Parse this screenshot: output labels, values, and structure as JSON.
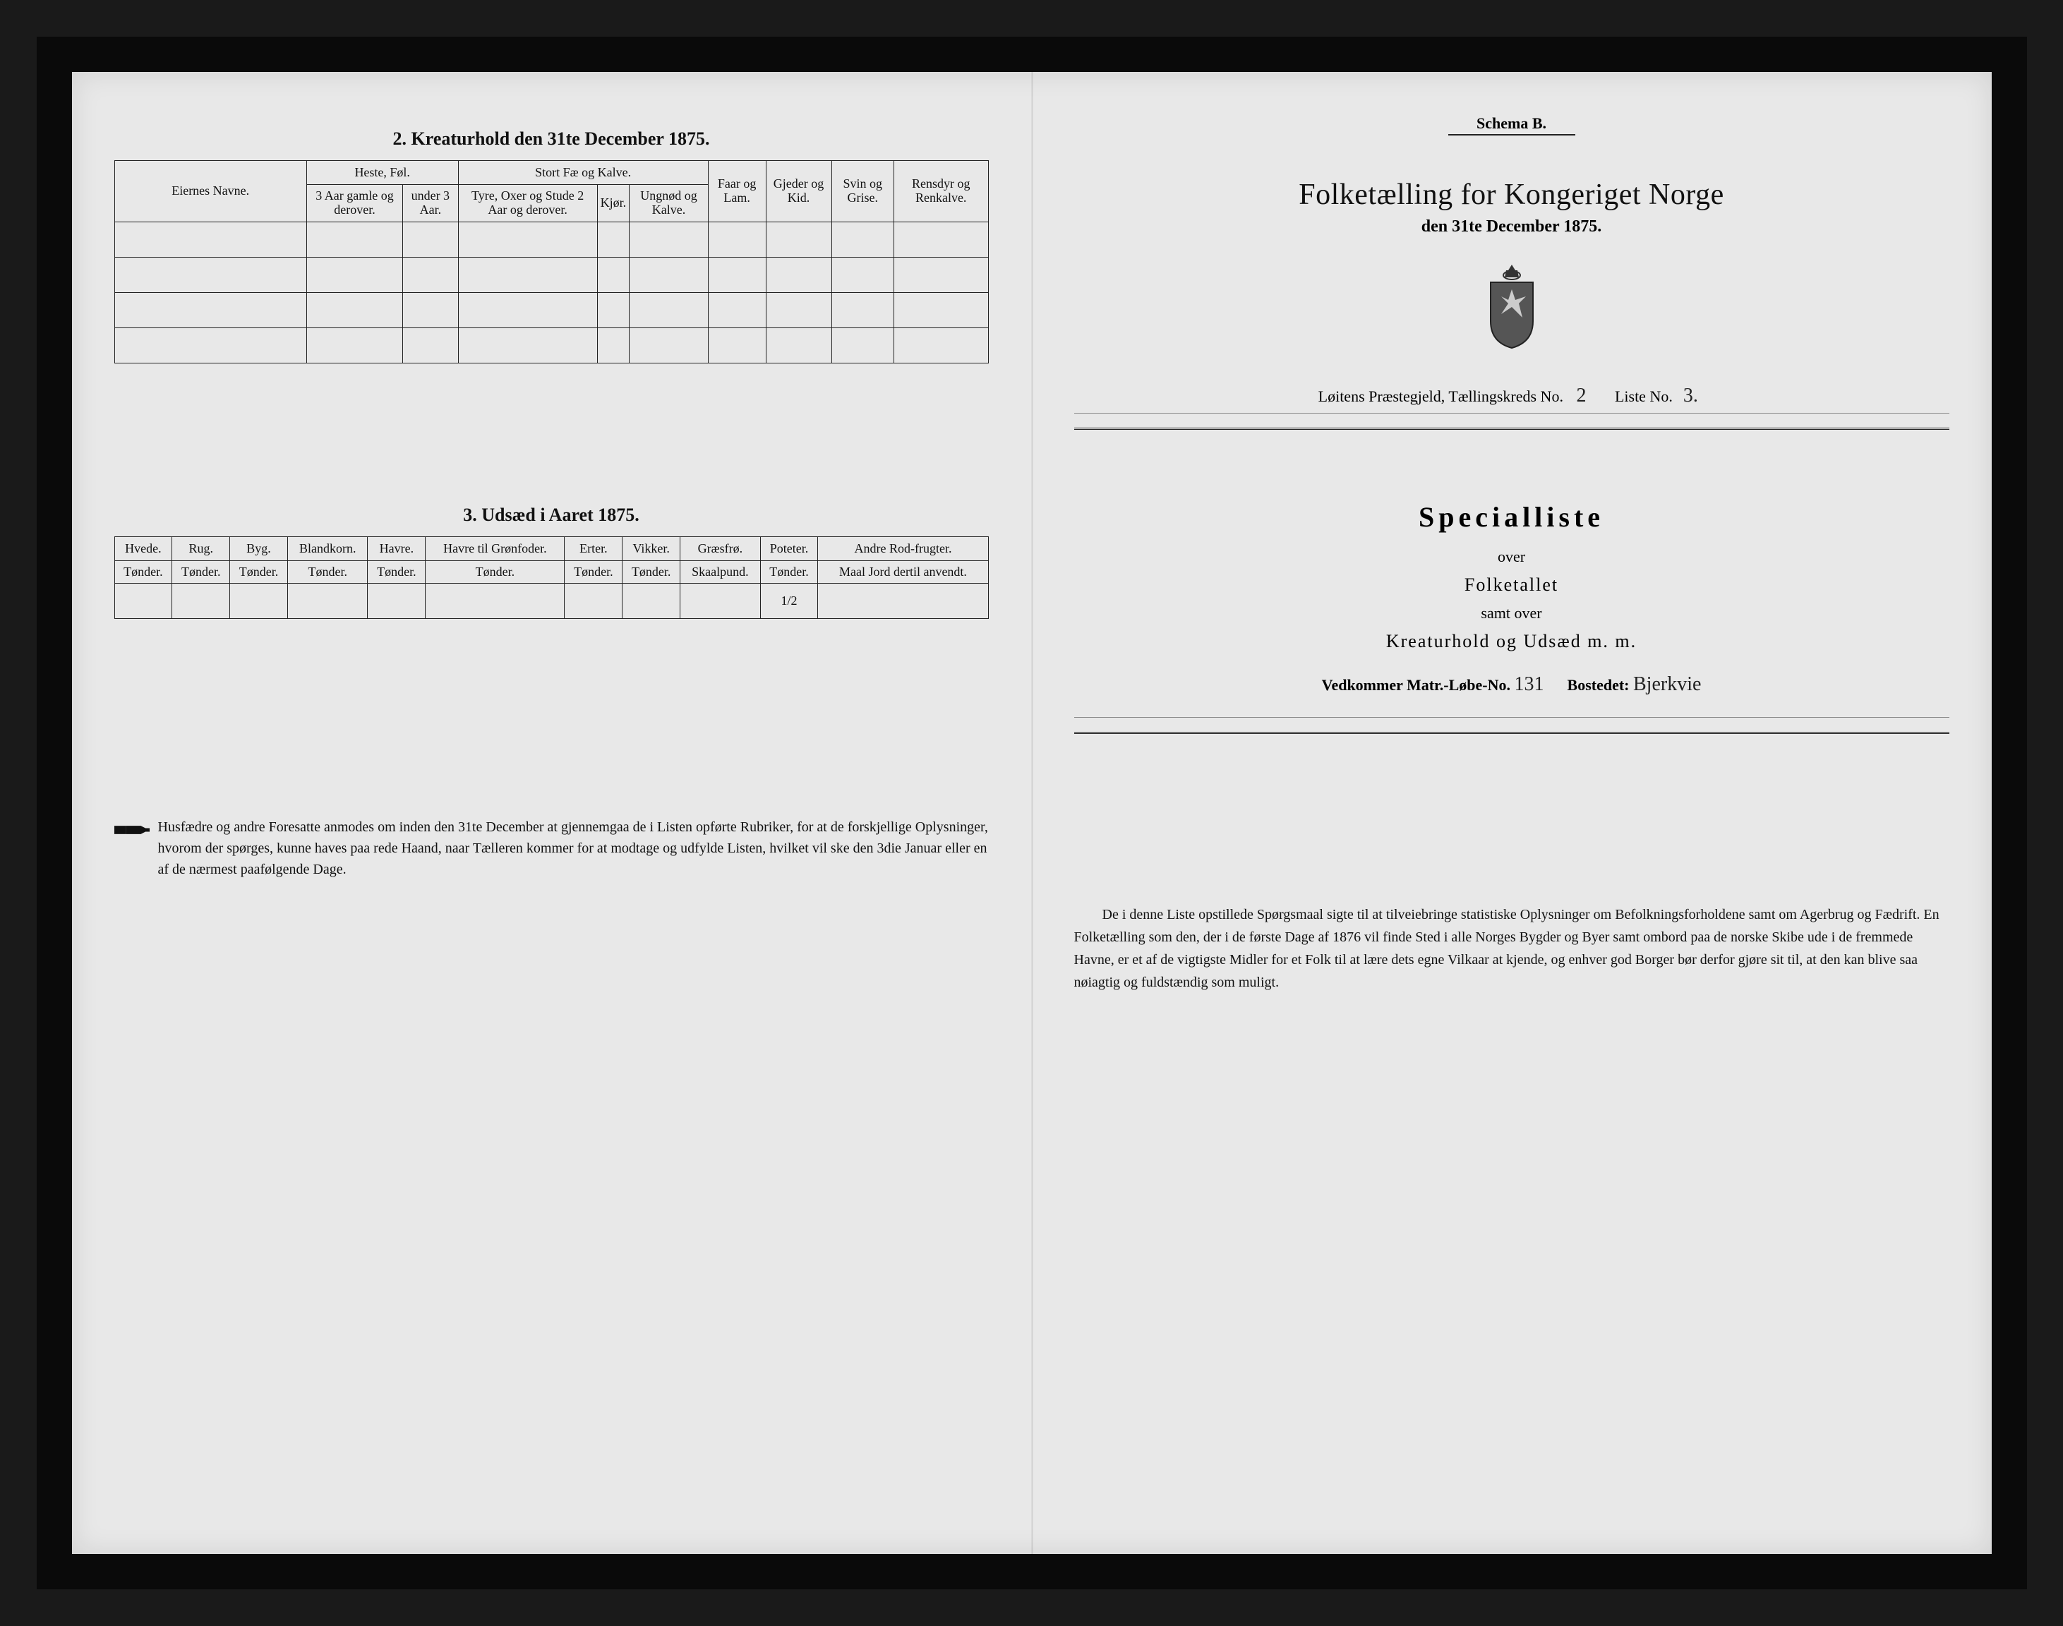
{
  "colors": {
    "page_bg": "#e8e8e8",
    "frame_bg": "#0a0a0a",
    "ink": "#111111",
    "rule": "#222222",
    "rule_light": "#888888"
  },
  "left": {
    "section2_title": "2.  Kreaturhold den 31te December 1875.",
    "table2": {
      "col_owner": "Eiernes Navne.",
      "group_horses": "Heste, Føl.",
      "group_cattle": "Stort Fæ og Kalve.",
      "col_horses_a": "3 Aar gamle og derover.",
      "col_horses_b": "under 3 Aar.",
      "col_cattle_a": "Tyre, Oxer og Stude 2 Aar og derover.",
      "col_cattle_b": "Kjør.",
      "col_cattle_c": "Ungnød og Kalve.",
      "col_sheep": "Faar og Lam.",
      "col_goats": "Gjeder og Kid.",
      "col_pigs": "Svin og Grise.",
      "col_reindeer": "Rensdyr og Renkalve."
    },
    "section3_title": "3.  Udsæd i Aaret 1875.",
    "table3": {
      "headers": [
        "Hvede.",
        "Rug.",
        "Byg.",
        "Blandkorn.",
        "Havre.",
        "Havre til Grønfoder.",
        "Erter.",
        "Vikker.",
        "Græsfrø.",
        "Poteter.",
        "Andre Rod-frugter."
      ],
      "units": [
        "Tønder.",
        "Tønder.",
        "Tønder.",
        "Tønder.",
        "Tønder.",
        "Tønder.",
        "Tønder.",
        "Tønder.",
        "Skaalpund.",
        "Tønder.",
        "Maal Jord dertil anvendt."
      ],
      "values": [
        "",
        "",
        "",
        "",
        "",
        "",
        "",
        "",
        "",
        "1/2",
        ""
      ]
    },
    "instructions": "Husfædre og andre Foresatte anmodes om inden den 31te December at gjennemgaa de i Listen opførte Rubriker, for at de forskjellige Oplysninger, hvorom der spørges, kunne haves paa rede Haand, naar Tælleren kommer for at modtage og udfylde Listen, hvilket vil ske den 3die Januar eller en af de nærmest paafølgende Dage."
  },
  "right": {
    "schema": "Schema B.",
    "main_title": "Folketælling for Kongeriget Norge",
    "main_sub": "den 31te December 1875.",
    "meta_prefix": "Løitens Præstegjeld, Tællingskreds No.",
    "meta_kreds": "2",
    "meta_liste_label": "Liste No.",
    "meta_liste": "3.",
    "special_title": "Specialliste",
    "over": "over",
    "folketallet": "Folketallet",
    "samt_over": "samt over",
    "kreaturhold": "Kreaturhold og Udsæd m. m.",
    "matr_label": "Vedkommer Matr.-Løbe-No.",
    "matr_no": "131",
    "bosted_label": "Bostedet:",
    "bosted": "Bjerkvie",
    "instructions": "De i denne Liste opstillede Spørgsmaal sigte til at tilveiebringe statistiske Oplysninger om Befolkningsforholdene samt om Agerbrug og Fædrift. En Folketælling som den, der i de første Dage af 1876 vil finde Sted i alle Norges Bygder og Byer samt ombord paa de norske Skibe ude i de fremmede Havne, er et af de vigtigste Midler for et Folk til at lære dets egne Vilkaar at kjende, og enhver god Borger bør derfor gjøre sit til, at den kan blive saa nøiagtig og fuldstændig som muligt."
  }
}
